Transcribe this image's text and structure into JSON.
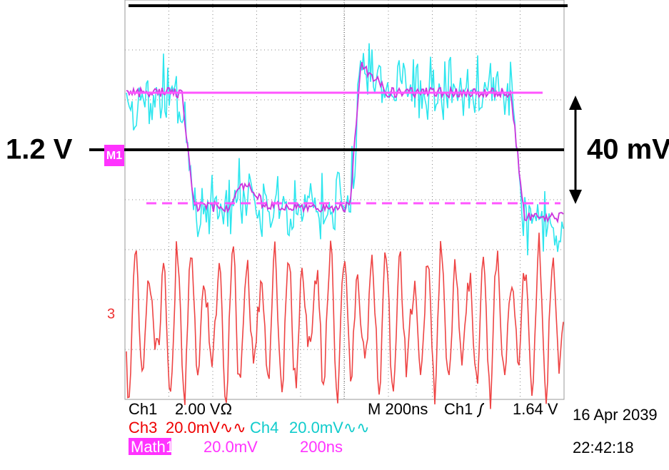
{
  "annotations": {
    "level": "1.2 V",
    "span": "40 mV"
  },
  "markers": {
    "math": "M1",
    "ch3": "3"
  },
  "readout": {
    "row1": [
      "Ch1",
      "2.00 VΩ",
      "M  200ns",
      "Ch1",
      "1.64 V"
    ],
    "row2": [
      "Ch3",
      "20.0mV∿∿",
      "Ch4",
      "20.0mV∿∿"
    ],
    "row3": [
      "Math1",
      "20.0mV",
      "200ns"
    ]
  },
  "timestamp": {
    "date": "16 Apr 2039",
    "time": "22:42:18"
  }
}
